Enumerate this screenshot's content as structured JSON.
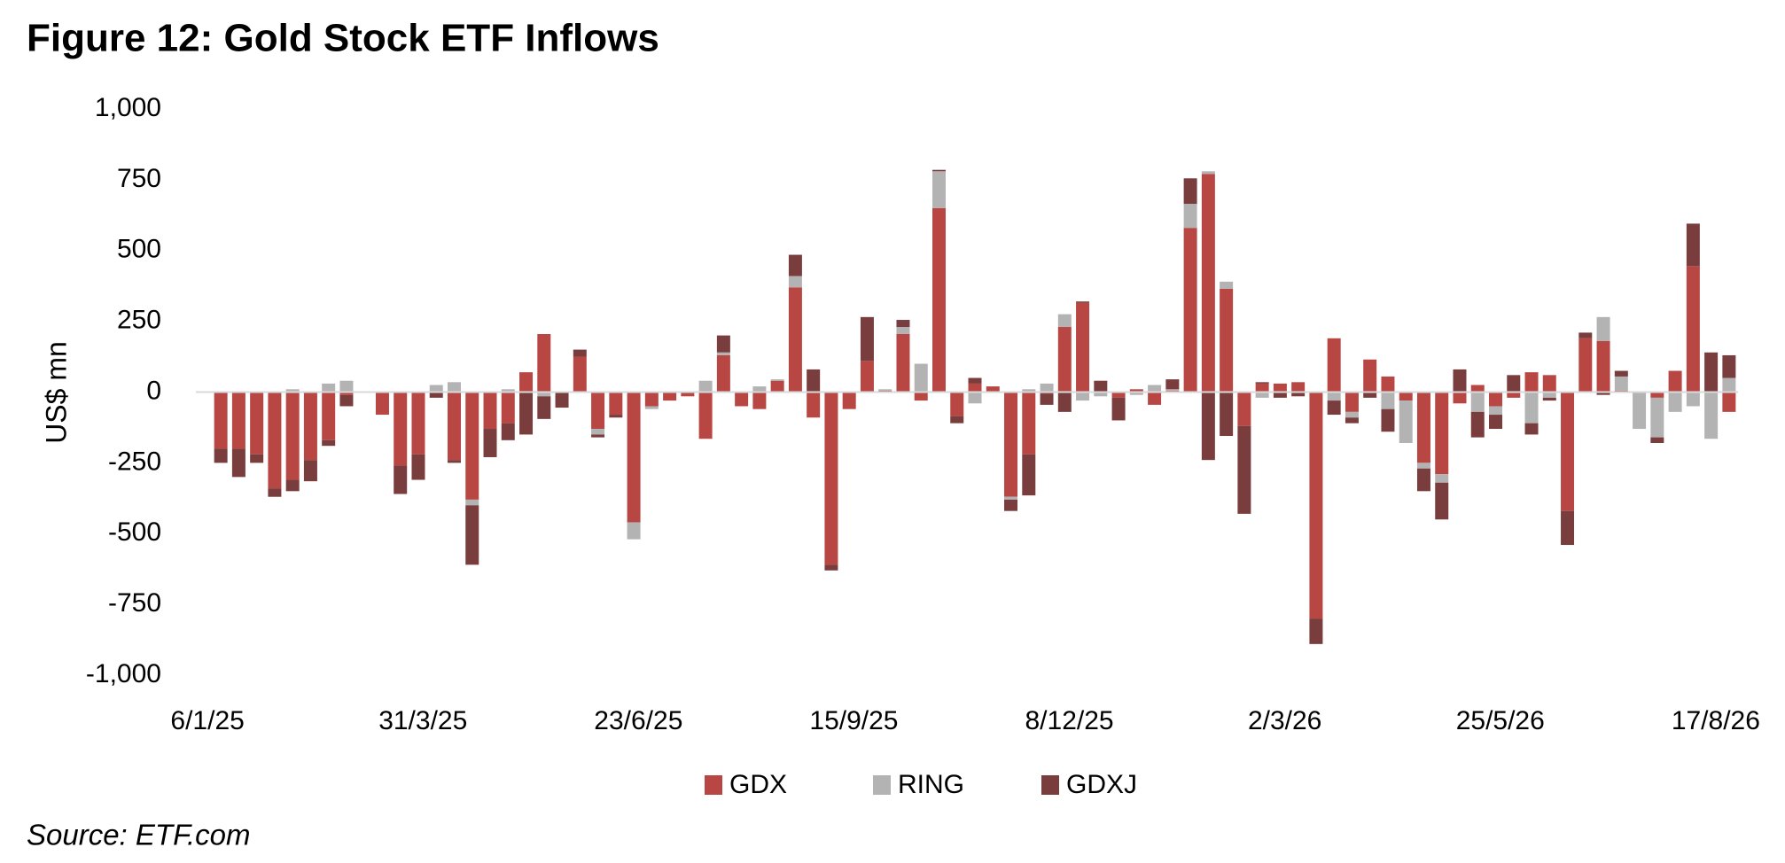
{
  "chart_data": {
    "type": "bar",
    "stacked": true,
    "title": "Figure 12: Gold Stock ETF Inflows",
    "y_label": "US$ mn",
    "source": "Source: ETF.com",
    "legend": "bottom",
    "grid": false,
    "ylim": [
      -1000,
      1000
    ],
    "yticks": [
      {
        "value": 1000,
        "label": "1,000"
      },
      750,
      500,
      250,
      0,
      -250,
      -500,
      -750,
      {
        "value": -1000,
        "label": "-1,000"
      }
    ],
    "categories": [
      "6/1/25",
      null,
      null,
      null,
      null,
      null,
      null,
      null,
      null,
      null,
      null,
      null,
      "31/3/25",
      null,
      null,
      null,
      null,
      null,
      null,
      null,
      null,
      null,
      null,
      null,
      "23/6/25",
      null,
      null,
      null,
      null,
      null,
      null,
      null,
      null,
      null,
      null,
      null,
      "15/9/25",
      null,
      null,
      null,
      null,
      null,
      null,
      null,
      null,
      null,
      null,
      null,
      "8/12/25",
      null,
      null,
      null,
      null,
      null,
      null,
      null,
      null,
      null,
      null,
      null,
      "2/3/26",
      null,
      null,
      null,
      null,
      null,
      null,
      null,
      null,
      null,
      null,
      null,
      "25/5/26",
      null,
      null,
      null,
      null,
      null,
      null,
      null,
      null,
      null,
      null,
      null,
      "17/8/26"
    ],
    "series": [
      {
        "name": "GDX",
        "color": "#b84744",
        "values": [
          -200,
          -200,
          -220,
          -340,
          -310,
          -240,
          -170,
          -10,
          0,
          -80,
          -260,
          -220,
          0,
          -240,
          -380,
          -130,
          -110,
          70,
          205,
          0,
          125,
          -130,
          -80,
          -460,
          -50,
          -30,
          -15,
          -165,
          130,
          -50,
          -60,
          40,
          370,
          -90,
          -610,
          -60,
          110,
          5,
          205,
          -30,
          650,
          -85,
          30,
          20,
          -370,
          -220,
          -5,
          230,
          315,
          0,
          -20,
          10,
          -45,
          5,
          580,
          770,
          365,
          -120,
          30,
          30,
          35,
          -800,
          190,
          -70,
          115,
          55,
          -30,
          -250,
          -290,
          -40,
          25,
          -50,
          -20,
          70,
          60,
          -420,
          190,
          180,
          5,
          0,
          -20,
          75,
          445,
          0,
          -70
        ]
      },
      {
        "name": "RING",
        "color": "#b3b3b3",
        "values": [
          0,
          0,
          0,
          0,
          10,
          0,
          30,
          40,
          0,
          0,
          0,
          0,
          25,
          35,
          -20,
          0,
          10,
          0,
          -15,
          0,
          0,
          -20,
          0,
          -60,
          -10,
          0,
          0,
          40,
          10,
          0,
          20,
          5,
          40,
          0,
          0,
          0,
          0,
          5,
          25,
          100,
          130,
          0,
          -40,
          0,
          -10,
          10,
          30,
          45,
          -30,
          -15,
          0,
          -10,
          25,
          5,
          85,
          10,
          25,
          0,
          -20,
          0,
          0,
          0,
          -30,
          -20,
          0,
          -60,
          -150,
          -20,
          -30,
          0,
          -70,
          -30,
          0,
          -110,
          -20,
          0,
          0,
          85,
          50,
          -130,
          -140,
          -70,
          -50,
          -165,
          50
        ]
      },
      {
        "name": "GDXJ",
        "color": "#7a3d3d",
        "values": [
          -50,
          -100,
          -30,
          -30,
          -40,
          -75,
          -20,
          -40,
          0,
          0,
          -100,
          -90,
          -20,
          -10,
          -210,
          -100,
          -60,
          -150,
          -80,
          -55,
          25,
          -10,
          -10,
          0,
          0,
          0,
          0,
          0,
          60,
          0,
          0,
          0,
          75,
          80,
          -20,
          0,
          155,
          0,
          25,
          0,
          5,
          -25,
          20,
          0,
          -40,
          -145,
          -40,
          -70,
          5,
          40,
          -80,
          0,
          0,
          35,
          90,
          -240,
          -155,
          -310,
          5,
          -20,
          -15,
          -90,
          -50,
          -20,
          -20,
          -80,
          0,
          -80,
          -130,
          80,
          -90,
          -50,
          60,
          -40,
          -10,
          -120,
          20,
          -10,
          20,
          0,
          -20,
          0,
          150,
          140,
          80
        ]
      }
    ]
  }
}
